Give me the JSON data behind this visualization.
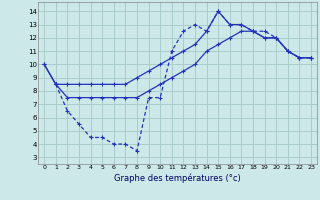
{
  "xlabel": "Graphe des températures (°c)",
  "background_color": "#cce8e8",
  "grid_color": "#aacccc",
  "line_color": "#2233bb",
  "x_ticks": [
    0,
    1,
    2,
    3,
    4,
    5,
    6,
    7,
    8,
    9,
    10,
    11,
    12,
    13,
    14,
    15,
    16,
    17,
    18,
    19,
    20,
    21,
    22,
    23
  ],
  "y_ticks": [
    3,
    4,
    5,
    6,
    7,
    8,
    9,
    10,
    11,
    12,
    13,
    14
  ],
  "ylim": [
    2.5,
    14.7
  ],
  "xlim": [
    -0.5,
    23.5
  ],
  "line1_x": [
    0,
    1,
    2,
    3,
    4,
    5,
    6,
    7,
    8,
    9,
    10,
    11,
    12,
    13,
    14,
    15,
    16,
    17,
    18,
    19,
    20,
    21,
    22,
    23
  ],
  "line1_y": [
    10.0,
    8.5,
    8.5,
    8.5,
    8.5,
    8.5,
    8.5,
    8.5,
    9.0,
    9.5,
    10.0,
    10.5,
    11.0,
    11.5,
    12.5,
    14.0,
    13.0,
    13.0,
    12.5,
    12.0,
    12.0,
    11.0,
    10.5,
    10.5
  ],
  "line2_x": [
    0,
    1,
    2,
    3,
    4,
    5,
    6,
    7,
    8,
    9,
    10,
    11,
    12,
    13,
    14,
    15,
    16,
    17,
    18,
    19,
    20,
    21,
    22,
    23
  ],
  "line2_y": [
    10.0,
    8.5,
    7.5,
    7.5,
    7.5,
    7.5,
    7.5,
    7.5,
    7.5,
    8.0,
    8.5,
    9.0,
    9.5,
    10.0,
    11.0,
    11.5,
    12.0,
    12.5,
    12.5,
    12.0,
    12.0,
    11.0,
    10.5,
    10.5
  ],
  "line3_x": [
    1,
    2,
    3,
    4,
    5,
    6,
    7,
    8,
    9,
    10,
    11,
    12,
    13,
    14,
    15,
    16,
    17,
    18,
    19,
    20,
    21,
    22,
    23
  ],
  "line3_y": [
    8.5,
    6.5,
    5.5,
    4.5,
    4.5,
    4.0,
    4.0,
    3.5,
    7.5,
    7.5,
    11.0,
    12.5,
    13.0,
    12.5,
    14.0,
    13.0,
    13.0,
    12.5,
    12.5,
    12.0,
    11.0,
    10.5,
    10.5
  ]
}
